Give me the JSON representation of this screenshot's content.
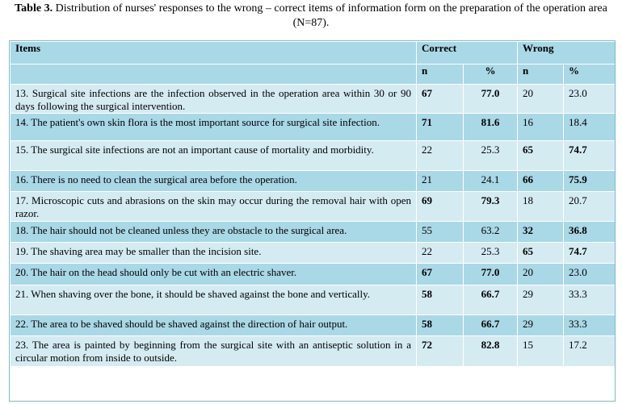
{
  "caption": {
    "label": "Table 3.",
    "text": "Distribution of nurses' responses to the wrong – correct items of information form on the preparation of the operation area (N=87)."
  },
  "headers": {
    "items": "Items",
    "correct": "Correct",
    "wrong": "Wrong",
    "n": "n",
    "pct": "%"
  },
  "rows": [
    {
      "text": "13. Surgical site infections are the infection observed in the operation area within 30 or 90 days following the surgical intervention.",
      "cn": "67",
      "cp": "77.0",
      "wn": "20",
      "wp": "23.0",
      "correct_bold": true
    },
    {
      "text": "14. The patient's own skin flora is the most important source for surgical site infection.",
      "cn": "71",
      "cp": "81.6",
      "wn": "16",
      "wp": "18.4",
      "correct_bold": true
    },
    {
      "text": "15. The surgical site infections are not an important cause of mortality and morbidity.",
      "cn": "22",
      "cp": "25.3",
      "wn": "65",
      "wp": "74.7",
      "correct_bold": false
    },
    {
      "text": "16. There is no need to clean the surgical area before the operation.",
      "cn": "21",
      "cp": "24.1",
      "wn": "66",
      "wp": "75.9",
      "correct_bold": false
    },
    {
      "text": "17. Microscopic cuts and abrasions on the skin may occur during the removal hair with open razor.",
      "cn": "69",
      "cp": "79.3",
      "wn": "18",
      "wp": "20.7",
      "correct_bold": true
    },
    {
      "text": "18. The hair should not be cleaned unless they are obstacle to the surgical area.",
      "cn": "55",
      "cp": "63.2",
      "wn": "32",
      "wp": "36.8",
      "correct_bold": false
    },
    {
      "text": "19. The shaving area may be smaller than the incision site.",
      "cn": "22",
      "cp": "25.3",
      "wn": "65",
      "wp": "74.7",
      "correct_bold": false
    },
    {
      "text": "20. The hair on the head should only be cut with an electric shaver.",
      "cn": "67",
      "cp": "77.0",
      "wn": "20",
      "wp": "23.0",
      "correct_bold": true
    },
    {
      "text": "21. When shaving over the bone, it should be shaved against the bone and vertically.",
      "cn": "58",
      "cp": "66.7",
      "wn": "29",
      "wp": "33.3",
      "correct_bold": true
    },
    {
      "text": "22. The area to be shaved should be shaved against the direction of hair output.",
      "cn": "58",
      "cp": "66.7",
      "wn": "29",
      "wp": "33.3",
      "correct_bold": true
    },
    {
      "text": "23. The area is painted by beginning from the surgical site with an antiseptic solution in a circular motion from inside to outside.",
      "cn": "72",
      "cp": "82.8",
      "wn": "15",
      "wp": "17.2",
      "correct_bold": true
    }
  ]
}
